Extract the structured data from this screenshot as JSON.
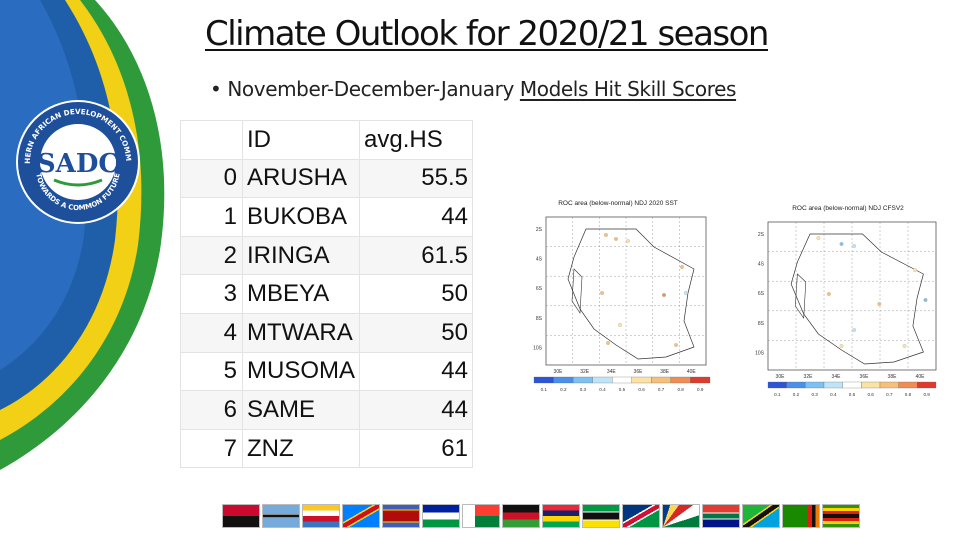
{
  "slide": {
    "title": "Climate Outlook for 2020/21 season",
    "bullet_prefix": "November-December-January ",
    "bullet_underlined": "Models Hit Skill Scores"
  },
  "logo": {
    "ring_text": "SOUTHERN AFRICAN DEVELOPMENT COMMUNITY",
    "bottom_text": "TOWARDS A COMMON FUTURE",
    "mark": "SADC"
  },
  "table": {
    "headers": [
      "",
      "ID",
      "avg.HS"
    ],
    "rows": [
      {
        "idx": "0",
        "id": "ARUSHA",
        "hs": "55.5"
      },
      {
        "idx": "1",
        "id": "BUKOBA",
        "hs": "44"
      },
      {
        "idx": "2",
        "id": "IRINGA",
        "hs": "61.5"
      },
      {
        "idx": "3",
        "id": "MBEYA",
        "hs": "50"
      },
      {
        "idx": "4",
        "id": "MTWARA",
        "hs": "50"
      },
      {
        "idx": "5",
        "id": "MUSOMA",
        "hs": "44"
      },
      {
        "idx": "6",
        "id": "SAME",
        "hs": "44"
      },
      {
        "idx": "7",
        "id": "ZNZ",
        "hs": "61"
      }
    ]
  },
  "maps": [
    {
      "title": "ROC area (below-normal) NDJ 2020 SST",
      "lat_labels": [
        "2S",
        "4S",
        "6S",
        "8S",
        "10S"
      ],
      "lon_labels": [
        "30E",
        "32E",
        "34E",
        "36E",
        "38E",
        "40E"
      ],
      "scale_labels": [
        "0.1",
        "0.2",
        "0.3",
        "0.4",
        "0.5",
        "0.6",
        "0.7",
        "0.8",
        "0.9"
      ]
    },
    {
      "title": "ROC area (below-normal) NDJ CFSV2",
      "lat_labels": [
        "2S",
        "4S",
        "6S",
        "8S",
        "10S"
      ],
      "lon_labels": [
        "30E",
        "32E",
        "34E",
        "36E",
        "38E",
        "40E"
      ],
      "scale_labels": [
        "0.1",
        "0.2",
        "0.3",
        "0.4",
        "0.5",
        "0.6",
        "0.7",
        "0.8",
        "0.9"
      ]
    }
  ],
  "colors": {
    "swoosh_green": "#2e9a3a",
    "swoosh_yellow": "#f2d016",
    "swoosh_blue": "#1f5ea8",
    "scale": [
      "#2b55d6",
      "#4a8fe8",
      "#7fc0f2",
      "#bfe4f7",
      "#ffffff",
      "#fbe2a6",
      "#f7c07a",
      "#f08c56",
      "#dd3b2e"
    ]
  },
  "flag_icons": [
    "angola-flag-icon",
    "botswana-flag-icon",
    "comoros-flag-icon",
    "drc-flag-icon",
    "eswatini-flag-icon",
    "lesotho-flag-icon",
    "madagascar-flag-icon",
    "malawi-flag-icon",
    "mauritius-flag-icon",
    "mozambique-flag-icon",
    "namibia-flag-icon",
    "seychelles-flag-icon",
    "south-africa-flag-icon",
    "tanzania-flag-icon",
    "zambia-flag-icon",
    "zimbabwe-flag-icon"
  ]
}
